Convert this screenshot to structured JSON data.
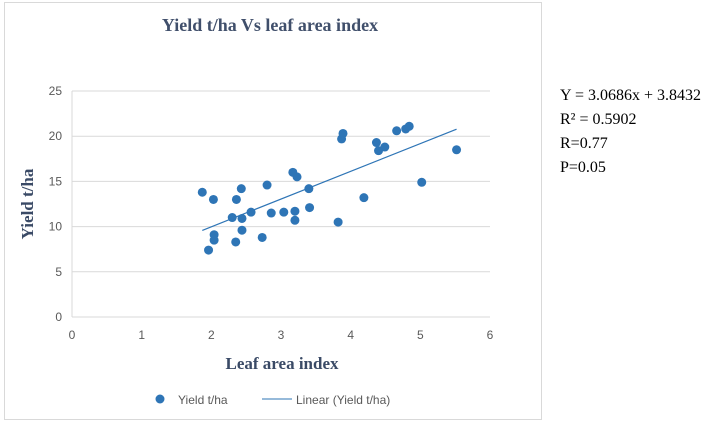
{
  "chart_data": {
    "type": "scatter",
    "title": "Yield t/ha Vs leaf area index",
    "xlabel": "Leaf area index",
    "ylabel": "Yield t/ha",
    "xlim": [
      0,
      6
    ],
    "ylim": [
      0,
      25
    ],
    "xticks": [
      0,
      1,
      2,
      3,
      4,
      5,
      6
    ],
    "yticks": [
      0,
      5,
      10,
      15,
      20,
      25
    ],
    "grid": "horizontal",
    "legend_position": "bottom",
    "series": [
      {
        "name": "Yield t/ha",
        "kind": "scatter",
        "color": "#2E75B6",
        "points": [
          {
            "x": 1.87,
            "y": 13.8
          },
          {
            "x": 1.96,
            "y": 7.4
          },
          {
            "x": 2.03,
            "y": 13.0
          },
          {
            "x": 2.04,
            "y": 9.1
          },
          {
            "x": 2.04,
            "y": 8.5
          },
          {
            "x": 2.3,
            "y": 11.0
          },
          {
            "x": 2.36,
            "y": 13.0
          },
          {
            "x": 2.35,
            "y": 8.3
          },
          {
            "x": 2.43,
            "y": 14.2
          },
          {
            "x": 2.44,
            "y": 10.9
          },
          {
            "x": 2.44,
            "y": 9.6
          },
          {
            "x": 2.57,
            "y": 11.6
          },
          {
            "x": 2.73,
            "y": 8.8
          },
          {
            "x": 2.8,
            "y": 14.6
          },
          {
            "x": 2.86,
            "y": 11.5
          },
          {
            "x": 3.04,
            "y": 11.6
          },
          {
            "x": 3.17,
            "y": 16.0
          },
          {
            "x": 3.2,
            "y": 11.7
          },
          {
            "x": 3.2,
            "y": 10.7
          },
          {
            "x": 3.23,
            "y": 15.5
          },
          {
            "x": 3.4,
            "y": 14.2
          },
          {
            "x": 3.41,
            "y": 12.1
          },
          {
            "x": 3.82,
            "y": 10.5
          },
          {
            "x": 3.87,
            "y": 19.7
          },
          {
            "x": 3.89,
            "y": 20.3
          },
          {
            "x": 4.19,
            "y": 13.2
          },
          {
            "x": 4.37,
            "y": 19.3
          },
          {
            "x": 4.4,
            "y": 18.4
          },
          {
            "x": 4.49,
            "y": 18.8
          },
          {
            "x": 4.66,
            "y": 20.6
          },
          {
            "x": 4.79,
            "y": 20.8
          },
          {
            "x": 4.84,
            "y": 21.1
          },
          {
            "x": 5.02,
            "y": 14.9
          },
          {
            "x": 5.52,
            "y": 18.5
          }
        ]
      },
      {
        "name": "Linear (Yield t/ha)",
        "kind": "line",
        "color": "#2E75B6",
        "x": [
          1.87,
          5.52
        ],
        "y": [
          9.58,
          20.78
        ]
      }
    ]
  },
  "stats": {
    "equation": "Y = 3.0686x + 3.8432",
    "r_squared": "R² = 0.5902",
    "r": "R=0.77",
    "p": "P=0.05"
  },
  "colors": {
    "title": "#404F6B",
    "axis_text": "#595959",
    "label": "#3A4A66",
    "grid": "#D9D9D9",
    "marker": "#2E75B6"
  }
}
